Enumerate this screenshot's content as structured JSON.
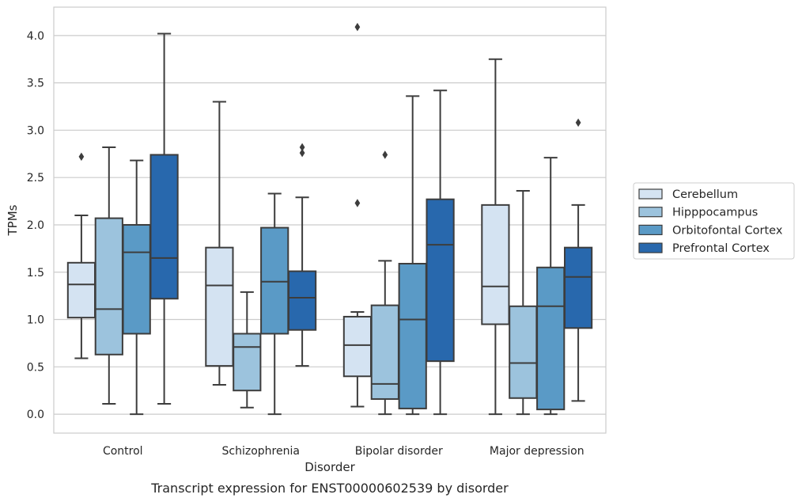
{
  "chart_data": {
    "type": "boxplot",
    "title": "",
    "caption": "Transcript expression for ENST00000602539 by disorder",
    "xlabel": "Disorder",
    "ylabel": "TPMs",
    "ylim": [
      -0.2,
      4.3
    ],
    "yticks": [
      0.0,
      0.5,
      1.0,
      1.5,
      2.0,
      2.5,
      3.0,
      3.5,
      4.0
    ],
    "ytick_labels": [
      "0.0",
      "0.5",
      "1.0",
      "1.5",
      "2.0",
      "2.5",
      "3.0",
      "3.5",
      "4.0"
    ],
    "grid": true,
    "legend_position": "right",
    "categories": [
      "Control",
      "Schizophrenia",
      "Bipolar disorder",
      "Major depression"
    ],
    "series": [
      {
        "name": "Cerebellum",
        "color": "#d4e3f2",
        "boxes": [
          {
            "whislo": 0.59,
            "q1": 1.02,
            "med": 1.37,
            "q3": 1.6,
            "whishi": 2.1,
            "fliers": [
              2.72
            ]
          },
          {
            "whislo": 0.31,
            "q1": 0.51,
            "med": 1.36,
            "q3": 1.76,
            "whishi": 3.3,
            "fliers": []
          },
          {
            "whislo": 0.08,
            "q1": 0.4,
            "med": 0.73,
            "q3": 1.03,
            "whishi": 1.08,
            "fliers": [
              2.23,
              4.09
            ]
          },
          {
            "whislo": 0.0,
            "q1": 0.95,
            "med": 1.35,
            "q3": 2.21,
            "whishi": 3.75,
            "fliers": []
          }
        ]
      },
      {
        "name": "Hipppocampus",
        "color": "#9cc3dd",
        "boxes": [
          {
            "whislo": 0.11,
            "q1": 0.63,
            "med": 1.11,
            "q3": 2.07,
            "whishi": 2.82,
            "fliers": []
          },
          {
            "whislo": 0.07,
            "q1": 0.25,
            "med": 0.71,
            "q3": 0.85,
            "whishi": 1.29,
            "fliers": []
          },
          {
            "whislo": 0.0,
            "q1": 0.16,
            "med": 0.32,
            "q3": 1.15,
            "whishi": 1.62,
            "fliers": [
              2.74
            ]
          },
          {
            "whislo": 0.0,
            "q1": 0.17,
            "med": 0.54,
            "q3": 1.14,
            "whishi": 2.36,
            "fliers": []
          }
        ]
      },
      {
        "name": "Orbitofontal Cortex",
        "color": "#5a9ac6",
        "boxes": [
          {
            "whislo": 0.0,
            "q1": 0.85,
            "med": 1.71,
            "q3": 2.0,
            "whishi": 2.68,
            "fliers": []
          },
          {
            "whislo": 0.0,
            "q1": 0.85,
            "med": 1.4,
            "q3": 1.97,
            "whishi": 2.33,
            "fliers": []
          },
          {
            "whislo": 0.0,
            "q1": 0.06,
            "med": 1.0,
            "q3": 1.59,
            "whishi": 3.36,
            "fliers": []
          },
          {
            "whislo": 0.0,
            "q1": 0.05,
            "med": 1.14,
            "q3": 1.55,
            "whishi": 2.71,
            "fliers": []
          }
        ]
      },
      {
        "name": "Prefrontal Cortex",
        "color": "#2868ad",
        "boxes": [
          {
            "whislo": 0.11,
            "q1": 1.22,
            "med": 1.65,
            "q3": 2.74,
            "whishi": 4.02,
            "fliers": []
          },
          {
            "whislo": 0.51,
            "q1": 0.89,
            "med": 1.23,
            "q3": 1.51,
            "whishi": 2.29,
            "fliers": [
              2.76,
              2.82
            ]
          },
          {
            "whislo": 0.0,
            "q1": 0.56,
            "med": 1.79,
            "q3": 2.27,
            "whishi": 3.42,
            "fliers": []
          },
          {
            "whislo": 0.14,
            "q1": 0.91,
            "med": 1.45,
            "q3": 1.76,
            "whishi": 2.21,
            "fliers": [
              3.08
            ]
          }
        ]
      }
    ]
  },
  "colors": {
    "grid": "#cccccc",
    "frame": "#cccccc",
    "line": "#3d3d3d",
    "text": "#262626"
  }
}
